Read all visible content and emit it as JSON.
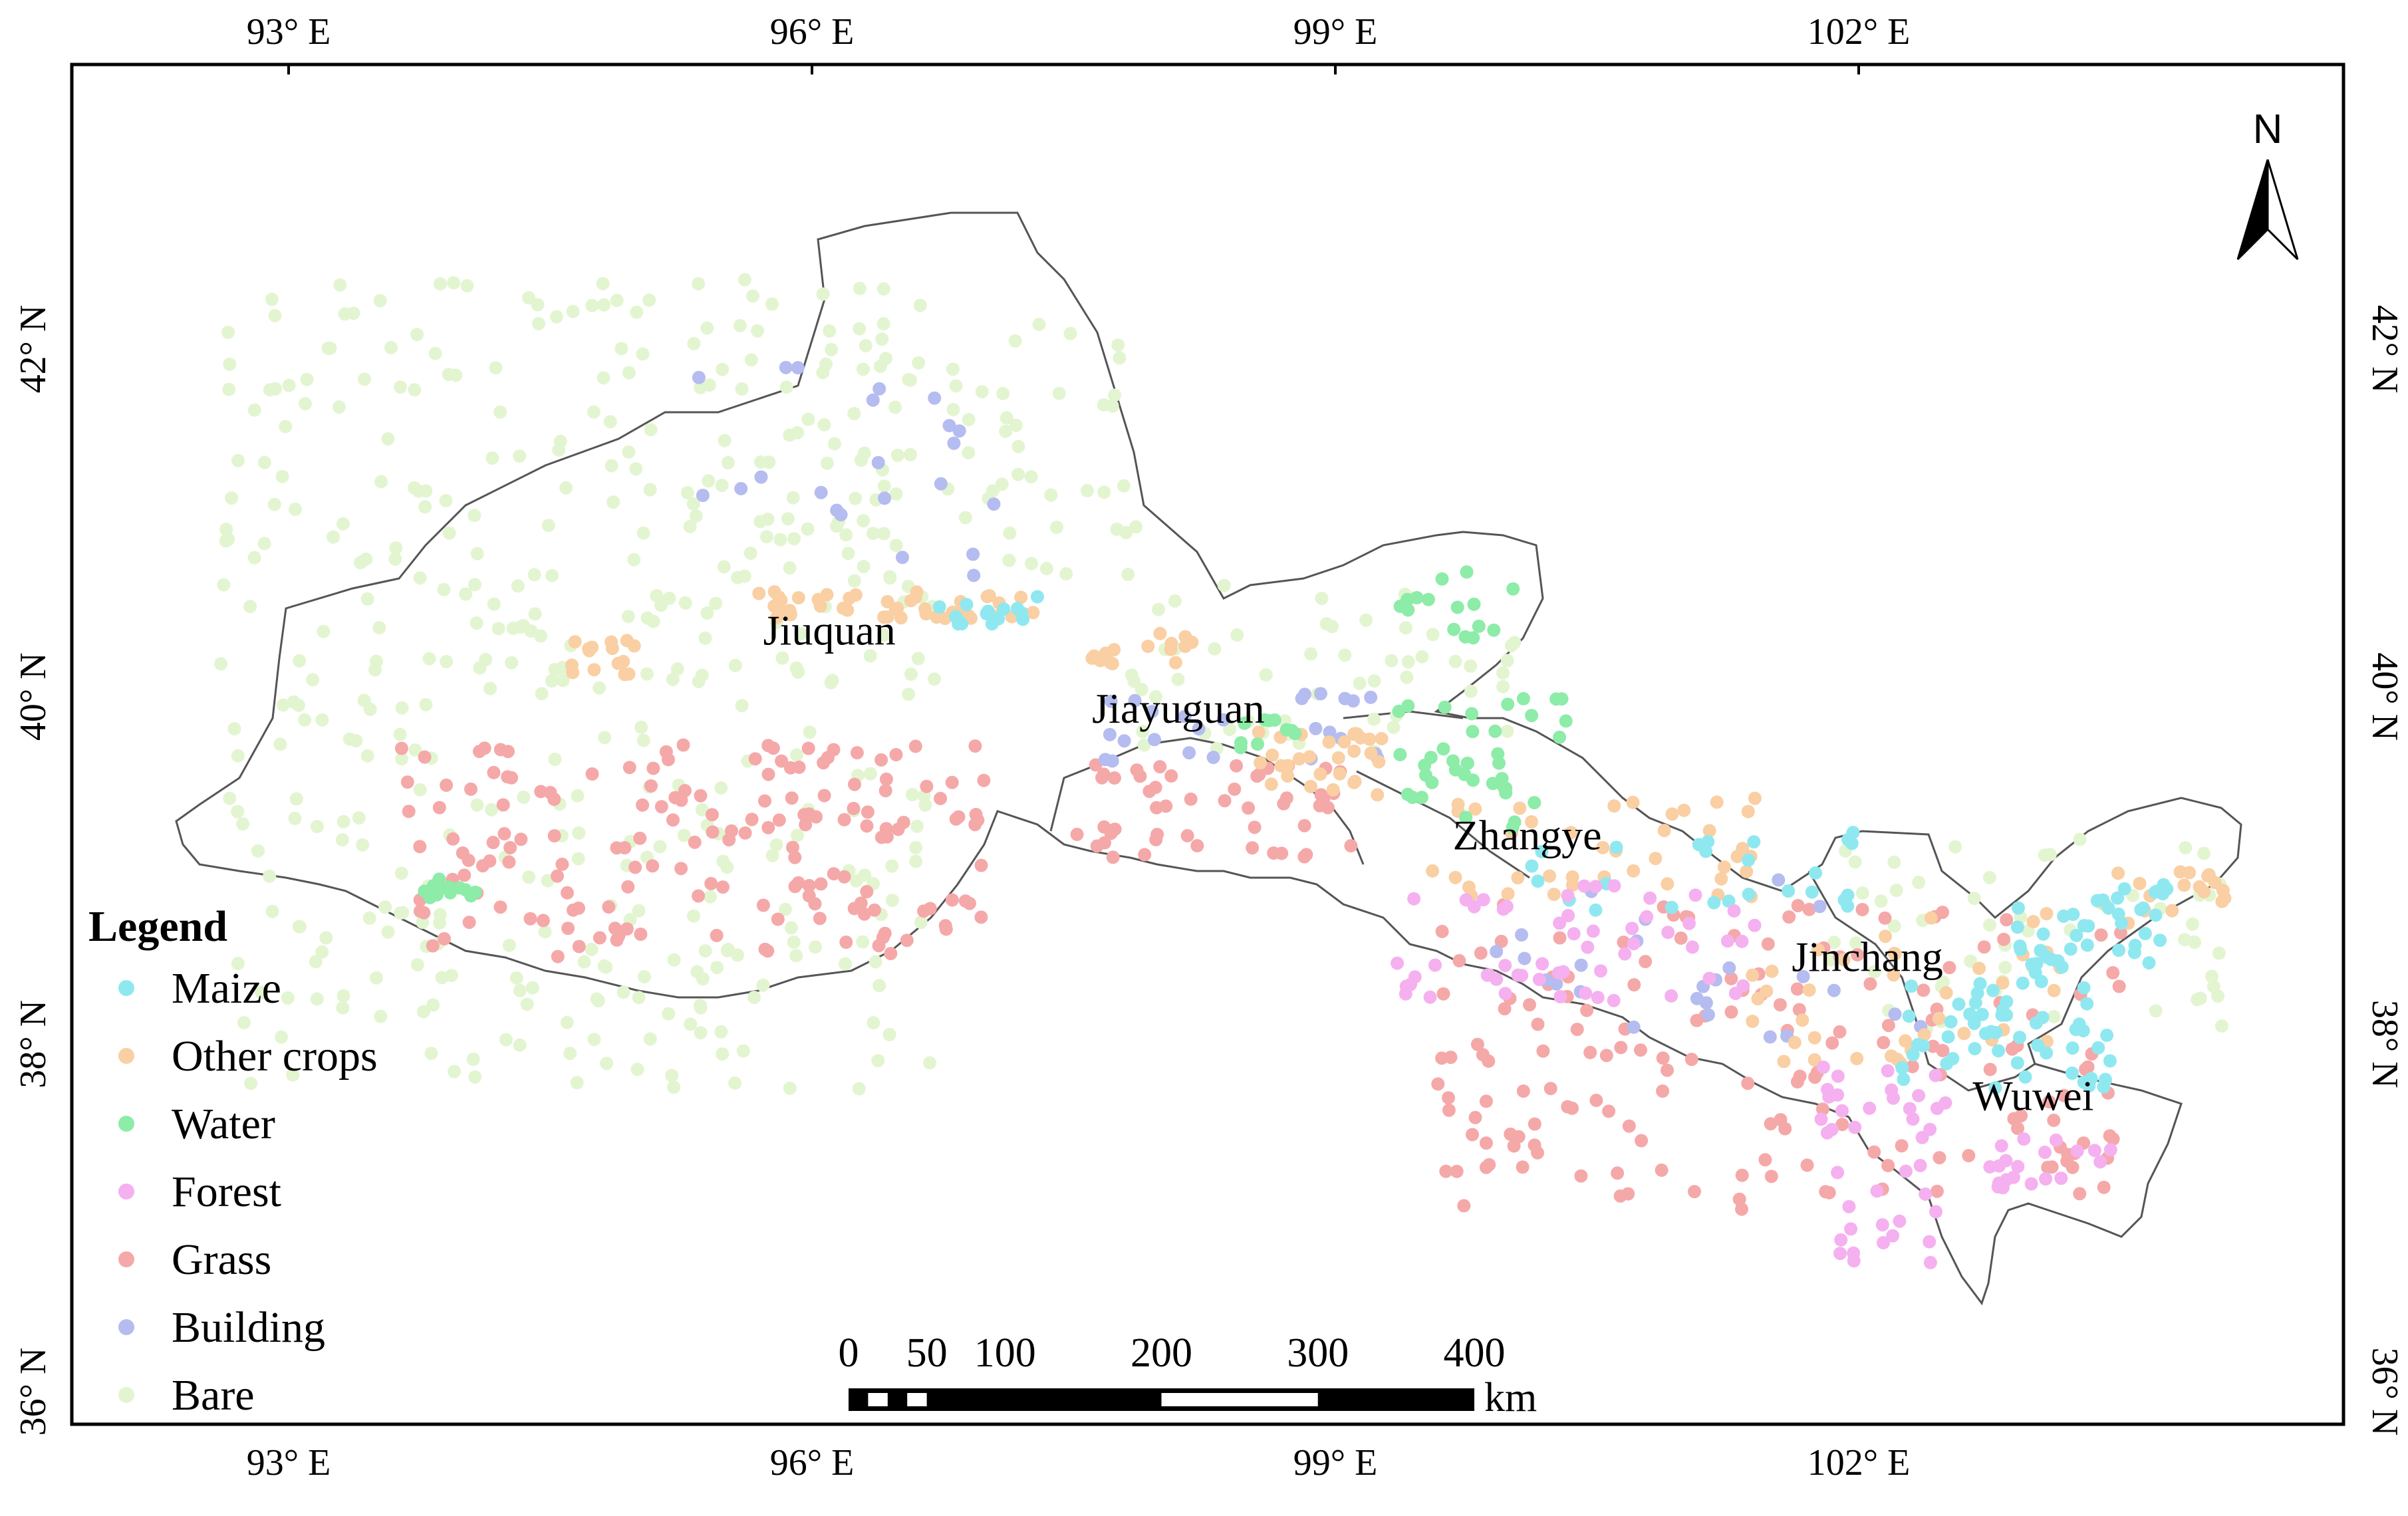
{
  "map": {
    "x_ticks": [
      "93° E",
      "96° E",
      "99° E",
      "102° E"
    ],
    "x_tick_values": [
      93,
      96,
      99,
      102
    ],
    "y_ticks": [
      "42° N",
      "40° N",
      "38° N",
      "36° N"
    ],
    "y_tick_values": [
      42,
      40,
      38,
      36
    ],
    "cities": [
      {
        "name": "Jiuquan",
        "lon": 96.1,
        "lat": 40.3
      },
      {
        "name": "Jiayuguan",
        "lon": 98.1,
        "lat": 39.85
      },
      {
        "name": "Zhangye",
        "lon": 100.1,
        "lat": 39.12
      },
      {
        "name": "Jinchang",
        "lon": 102.05,
        "lat": 38.42
      },
      {
        "name": "Wuwei",
        "lon": 103.0,
        "lat": 37.62
      }
    ],
    "north_label": "N"
  },
  "legend": {
    "title": "Legend",
    "items": [
      {
        "label": "Maize",
        "color": "#8fe8f0"
      },
      {
        "label": "Other crops",
        "color": "#f9cfa3"
      },
      {
        "label": "Water",
        "color": "#8ceca8"
      },
      {
        "label": "Forest",
        "color": "#f5b0f0"
      },
      {
        "label": "Grass",
        "color": "#f5a8a8"
      },
      {
        "label": "Building",
        "color": "#b4bcf0"
      },
      {
        "label": "Bare",
        "color": "#e2f5d0"
      }
    ]
  },
  "scale_bar": {
    "labels": [
      "0",
      "50",
      "100",
      "200",
      "300",
      "400"
    ],
    "values": [
      0,
      50,
      100,
      200,
      300,
      400
    ],
    "unit": "km"
  }
}
